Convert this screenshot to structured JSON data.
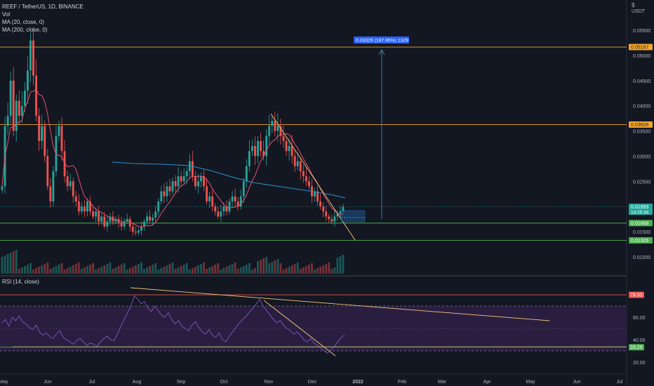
{
  "legend": {
    "symbol": "REEF / TetherUS, 1D, BINANCE",
    "vol": "Vol",
    "ma20": "MA (20, close, 0)",
    "ma200": "MA (200, close, 0)"
  },
  "rsi_legend": "RSI (14, close)",
  "currency": "USDT",
  "currency_mark": "$",
  "colors": {
    "background": "#131722",
    "up": "#26a69a",
    "down": "#ef5350",
    "ma20": "#e84f6f",
    "ma200": "#2a8fc8",
    "orange_line": "#f2a52b",
    "green_line": "#4caf50",
    "arrow": "#3a8fb7",
    "rsi_line": "#7e57c2",
    "rsi_band": "#2a1e40",
    "trend": "#f6c67a"
  },
  "chart_data": {
    "type": "candlestick",
    "price_axis": {
      "ticks": [
        0.055,
        0.05,
        0.045,
        0.04,
        0.035,
        0.03,
        0.025,
        0.015,
        0.01
      ],
      "tick_labels": [
        "0.05500",
        "0.05000",
        "0.04500",
        "0.04000",
        "0.03500",
        "0.03000",
        "0.02500",
        "0.01500",
        "0.01000"
      ]
    },
    "rsi_axis": {
      "ticks": [
        60,
        40,
        20
      ],
      "tick_labels": [
        "60.00",
        "40.00",
        "20.00"
      ]
    },
    "time_axis": [
      "May",
      "Jun",
      "Jul",
      "Aug",
      "Sep",
      "Oct",
      "Nov",
      "Dec",
      "2022",
      "Feb",
      "Mar",
      "Apr",
      "May",
      "Jun",
      "Jul"
    ],
    "horizontal_levels": [
      {
        "value": 0.05167,
        "label": "0.05167",
        "color": "orange"
      },
      {
        "value": 0.03626,
        "label": "0.03626",
        "color": "orange"
      },
      {
        "value": 0.01993,
        "label": "0.01993",
        "sublabel": "14:25:34",
        "color": "teal",
        "current": true
      },
      {
        "value": 0.01669,
        "label": "0.01669",
        "color": "green"
      },
      {
        "value": 0.01326,
        "label": "0.01326",
        "color": "green"
      }
    ],
    "rsi_levels": [
      {
        "value": 79.93,
        "label": "79.93",
        "color": "red"
      },
      {
        "value": 33.29,
        "label": "33.29",
        "color": "green"
      }
    ],
    "measure_label": "0.03329 (187.95%) 1329",
    "candles_close_path": [
      0.024,
      0.036,
      0.038,
      0.045,
      0.035,
      0.041,
      0.038,
      0.04,
      0.043,
      0.047,
      0.053,
      0.046,
      0.038,
      0.033,
      0.036,
      0.03,
      0.024,
      0.021,
      0.027,
      0.034,
      0.036,
      0.031,
      0.026,
      0.024,
      0.025,
      0.022,
      0.021,
      0.019,
      0.02,
      0.019,
      0.021,
      0.019,
      0.018,
      0.019,
      0.017,
      0.018,
      0.016,
      0.017,
      0.018,
      0.017,
      0.0175,
      0.0168,
      0.016,
      0.017,
      0.0175,
      0.016,
      0.015,
      0.0148,
      0.0152,
      0.016,
      0.017,
      0.018,
      0.0172,
      0.0178,
      0.019,
      0.021,
      0.023,
      0.022,
      0.024,
      0.023,
      0.025,
      0.024,
      0.026,
      0.025,
      0.026,
      0.027,
      0.029,
      0.026,
      0.024,
      0.025,
      0.026,
      0.024,
      0.021,
      0.022,
      0.02,
      0.019,
      0.018,
      0.019,
      0.02,
      0.019,
      0.021,
      0.022,
      0.021,
      0.02,
      0.022,
      0.025,
      0.028,
      0.031,
      0.032,
      0.03,
      0.033,
      0.031,
      0.03,
      0.034,
      0.036,
      0.037,
      0.035,
      0.036,
      0.034,
      0.033,
      0.031,
      0.032,
      0.03,
      0.028,
      0.029,
      0.027,
      0.026,
      0.025,
      0.024,
      0.022,
      0.023,
      0.021,
      0.02,
      0.019,
      0.018,
      0.0175,
      0.017,
      0.018,
      0.0185,
      0.019,
      0.01993
    ]
  }
}
